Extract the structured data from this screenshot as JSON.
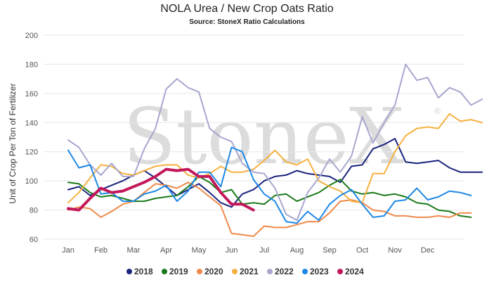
{
  "chart_data": {
    "type": "line",
    "title": "NOLA Urea / New Crop Oats Ratio",
    "subtitle": "Source: StoneX Ratio Calculations",
    "watermark": "StoneX",
    "xlabel": "",
    "ylabel": "Unit of Crop Per Ton of Fertilizer",
    "ylim": [
      60,
      200
    ],
    "yticks": [
      60,
      80,
      100,
      120,
      140,
      160,
      180,
      200
    ],
    "xlim": [
      0,
      12.2
    ],
    "month_ticks": [
      "Jan",
      "Feb",
      "Mar",
      "Apr",
      "May",
      "Jun",
      "Jul",
      "Aug",
      "Sep",
      "Oct",
      "Nov",
      "Dec"
    ],
    "grid": "horizontal",
    "legend_position": "bottom",
    "series": [
      {
        "name": "2018",
        "color": "#1a237e",
        "x": [
          0.0,
          0.33,
          0.67,
          1.0,
          1.33,
          1.67,
          2.0,
          2.33,
          2.67,
          3.0,
          3.33,
          3.67,
          4.0,
          4.33,
          4.67,
          5.0,
          5.33,
          5.67,
          6.0,
          6.33,
          6.67,
          7.0,
          7.33,
          7.67,
          8.0,
          8.33,
          8.67,
          9.0,
          9.33,
          9.67,
          10.0,
          10.33,
          10.67,
          11.0,
          11.33,
          11.67,
          12.0,
          12.33,
          12.67
        ],
        "y": [
          94,
          96,
          90,
          94,
          97,
          100,
          104,
          107,
          102,
          96,
          90,
          94,
          98,
          92,
          85,
          82,
          91,
          94,
          100,
          103,
          104,
          107,
          105,
          104,
          103,
          99,
          110,
          111,
          122,
          125,
          129,
          113,
          112,
          113,
          114,
          109,
          106,
          106,
          106
        ]
      },
      {
        "name": "2019",
        "color": "#1b7a1b",
        "x": [
          0.0,
          0.33,
          0.67,
          1.0,
          1.33,
          1.67,
          2.0,
          2.33,
          2.67,
          3.0,
          3.33,
          3.67,
          4.0,
          4.33,
          4.67,
          5.0,
          5.33,
          5.67,
          6.0,
          6.33,
          6.67,
          7.0,
          7.33,
          7.67,
          8.0,
          8.33,
          8.67,
          9.0,
          9.33,
          9.67,
          10.0,
          10.33,
          10.67,
          11.0,
          11.33,
          11.67,
          12.0,
          12.33
        ],
        "y": [
          99,
          98,
          92,
          89,
          90,
          88,
          86,
          86,
          88,
          89,
          90,
          96,
          103,
          99,
          92,
          94,
          84,
          85,
          84,
          90,
          91,
          86,
          89,
          92,
          97,
          101,
          93,
          91,
          92,
          90,
          91,
          89,
          85,
          84,
          80,
          79,
          76,
          75
        ]
      },
      {
        "name": "2020",
        "color": "#ef8a4a",
        "x": [
          0.0,
          0.33,
          0.67,
          1.0,
          1.33,
          1.67,
          2.0,
          2.33,
          2.67,
          3.0,
          3.33,
          3.67,
          4.0,
          4.33,
          4.67,
          5.0,
          5.33,
          5.67,
          6.0,
          6.33,
          6.67,
          7.0,
          7.33,
          7.67,
          8.0,
          8.33,
          8.67,
          9.0,
          9.33,
          9.67,
          10.0,
          10.33,
          10.67,
          11.0,
          11.33,
          11.67,
          12.0,
          12.33
        ],
        "y": [
          80,
          82,
          81,
          75,
          79,
          84,
          86,
          92,
          98,
          97,
          95,
          99,
          95,
          89,
          83,
          64,
          63,
          62,
          69,
          68,
          68,
          70,
          72,
          72,
          78,
          86,
          87,
          85,
          80,
          79,
          76,
          76,
          75,
          75,
          76,
          75,
          78,
          78
        ]
      },
      {
        "name": "2021",
        "color": "#f5b041",
        "x": [
          0.0,
          0.33,
          0.67,
          1.0,
          1.33,
          1.67,
          2.0,
          2.33,
          2.67,
          3.0,
          3.33,
          3.67,
          4.0,
          4.33,
          4.67,
          5.0,
          5.33,
          5.67,
          6.0,
          6.33,
          6.67,
          7.0,
          7.33,
          7.67,
          8.0,
          8.33,
          8.67,
          9.0,
          9.33,
          9.67,
          10.0,
          10.33,
          10.67,
          11.0,
          11.33,
          11.67,
          12.0,
          12.33,
          12.67
        ],
        "y": [
          85,
          92,
          102,
          111,
          110,
          105,
          104,
          107,
          110,
          111,
          111,
          104,
          102,
          105,
          110,
          106,
          106,
          108,
          114,
          121,
          113,
          111,
          115,
          100,
          96,
          93,
          86,
          85,
          105,
          105,
          120,
          131,
          136,
          137,
          136,
          146,
          141,
          142,
          140
        ]
      },
      {
        "name": "2022",
        "color": "#a7a7cf",
        "x": [
          0.0,
          0.33,
          0.67,
          1.0,
          1.33,
          1.67,
          2.0,
          2.33,
          2.67,
          3.0,
          3.33,
          3.67,
          4.0,
          4.33,
          4.67,
          5.0,
          5.33,
          5.67,
          6.0,
          6.33,
          6.67,
          7.0,
          7.33,
          7.67,
          8.0,
          8.33,
          8.67,
          9.0,
          9.33,
          9.67,
          10.0,
          10.33,
          10.67,
          11.0,
          11.33,
          11.67,
          12.0,
          12.33,
          12.67
        ],
        "y": [
          128,
          123,
          111,
          104,
          112,
          103,
          103,
          122,
          136,
          163,
          170,
          164,
          161,
          136,
          130,
          127,
          112,
          106,
          105,
          95,
          77,
          73,
          92,
          102,
          115,
          106,
          117,
          144,
          126,
          140,
          152,
          180,
          169,
          171,
          157,
          164,
          161,
          152,
          156
        ]
      },
      {
        "name": "2023",
        "color": "#1e88e5",
        "x": [
          0.0,
          0.33,
          0.67,
          1.0,
          1.33,
          1.67,
          2.0,
          2.33,
          2.67,
          3.0,
          3.33,
          3.67,
          4.0,
          4.33,
          4.67,
          5.0,
          5.33,
          5.67,
          6.0,
          6.33,
          6.67,
          7.0,
          7.33,
          7.67,
          8.0,
          8.33,
          8.67,
          9.0,
          9.33,
          9.67,
          10.0,
          10.33,
          10.67,
          11.0,
          11.33,
          11.67,
          12.0,
          12.33
        ],
        "y": [
          121,
          109,
          111,
          91,
          92,
          86,
          86,
          91,
          93,
          97,
          86,
          93,
          106,
          106,
          96,
          123,
          120,
          101,
          91,
          86,
          72,
          71,
          79,
          73,
          84,
          90,
          94,
          84,
          75,
          76,
          86,
          87,
          95,
          87,
          89,
          93,
          92,
          90
        ]
      },
      {
        "name": "2024",
        "color": "#c2185b",
        "x": [
          0.0,
          0.33,
          0.67,
          1.0,
          1.33,
          1.67,
          2.0,
          2.33,
          2.67,
          3.0,
          3.33,
          3.67,
          4.0,
          4.33,
          4.67,
          5.0,
          5.33,
          5.67
        ],
        "y": [
          81,
          80,
          88,
          95,
          92,
          93,
          96,
          99,
          103,
          108,
          107,
          108,
          103,
          103,
          92,
          84,
          84,
          80
        ]
      }
    ],
    "series_order": [
      "2018",
      "2019",
      "2020",
      "2021",
      "2022",
      "2023",
      "2024"
    ]
  }
}
